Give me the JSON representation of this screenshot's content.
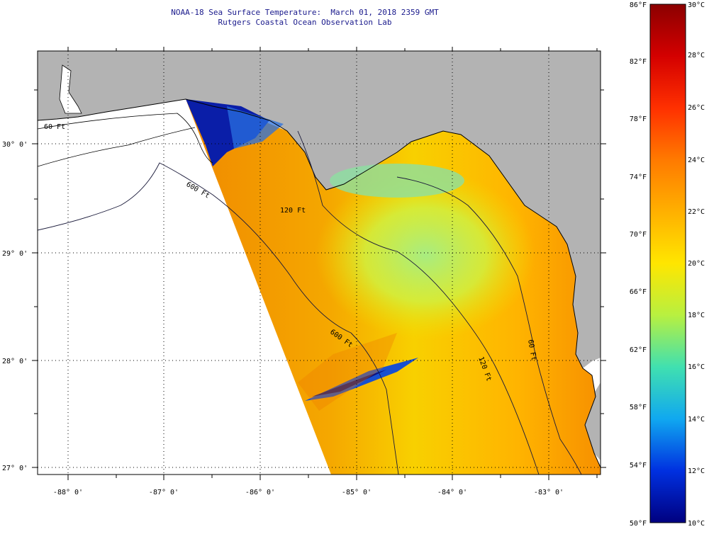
{
  "header": {
    "title": "NOAA-18 Sea Surface Temperature:  March 01, 2018 2359 GMT",
    "subtitle": "Rutgers Coastal Ocean Observation Lab"
  },
  "map": {
    "lat_labels": [
      "30° 0'",
      "29° 0'",
      "28° 0'",
      "27° 0'"
    ],
    "lon_labels": [
      "-88° 0'",
      "-87° 0'",
      "-86° 0'",
      "-85° 0'",
      "-84° 0'",
      "-83° 0'"
    ],
    "contours": [
      "60 Ft",
      "120 Ft",
      "600 Ft",
      "600 Ft",
      "60 Ft",
      "120 Ft"
    ]
  },
  "legend": {
    "f_labels": [
      "86°F",
      "82°F",
      "78°F",
      "74°F",
      "70°F",
      "66°F",
      "62°F",
      "58°F",
      "54°F",
      "50°F"
    ],
    "c_labels": [
      "30°C",
      "28°C",
      "26°C",
      "24°C",
      "22°C",
      "20°C",
      "18°C",
      "16°C",
      "14°C",
      "12°C",
      "10°C"
    ],
    "colors": [
      "#8b0000",
      "#e01010",
      "#ff5a00",
      "#ff9a00",
      "#ffe000",
      "#c8f030",
      "#60e090",
      "#20c8e0",
      "#1060ff",
      "#0010c0",
      "#000080"
    ]
  }
}
